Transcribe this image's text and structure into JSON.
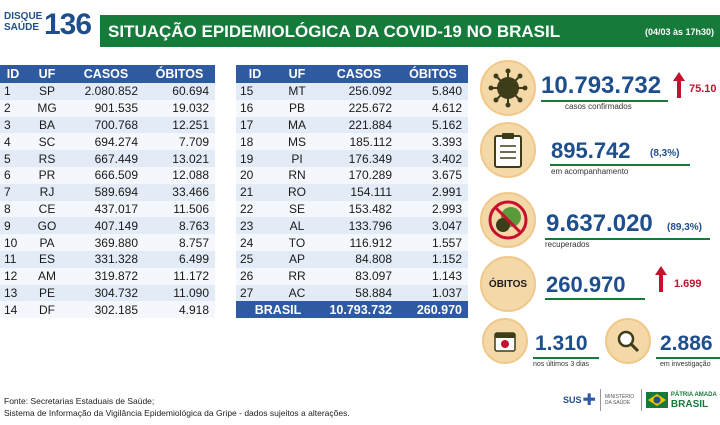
{
  "header": {
    "logo_line1": "DISQUE",
    "logo_line2": "SAÚDE",
    "logo_number": "136",
    "title": "SITUAÇÃO EPIDEMIOLÓGICA DA COVID-19 NO BRASIL",
    "date": "(04/03 às 17h30)"
  },
  "table_headers": {
    "id": "ID",
    "uf": "UF",
    "casos": "CASOS",
    "obitos": "ÓBITOS"
  },
  "table_left": [
    {
      "id": "1",
      "uf": "SP",
      "casos": "2.080.852",
      "obitos": "60.694"
    },
    {
      "id": "2",
      "uf": "MG",
      "casos": "901.535",
      "obitos": "19.032"
    },
    {
      "id": "3",
      "uf": "BA",
      "casos": "700.768",
      "obitos": "12.251"
    },
    {
      "id": "4",
      "uf": "SC",
      "casos": "694.274",
      "obitos": "7.709"
    },
    {
      "id": "5",
      "uf": "RS",
      "casos": "667.449",
      "obitos": "13.021"
    },
    {
      "id": "6",
      "uf": "PR",
      "casos": "666.509",
      "obitos": "12.088"
    },
    {
      "id": "7",
      "uf": "RJ",
      "casos": "589.694",
      "obitos": "33.466"
    },
    {
      "id": "8",
      "uf": "CE",
      "casos": "437.017",
      "obitos": "11.506"
    },
    {
      "id": "9",
      "uf": "GO",
      "casos": "407.149",
      "obitos": "8.763"
    },
    {
      "id": "10",
      "uf": "PA",
      "casos": "369.880",
      "obitos": "8.757"
    },
    {
      "id": "11",
      "uf": "ES",
      "casos": "331.328",
      "obitos": "6.499"
    },
    {
      "id": "12",
      "uf": "AM",
      "casos": "319.872",
      "obitos": "11.172"
    },
    {
      "id": "13",
      "uf": "PE",
      "casos": "304.732",
      "obitos": "11.090"
    },
    {
      "id": "14",
      "uf": "DF",
      "casos": "302.185",
      "obitos": "4.918"
    }
  ],
  "table_right": [
    {
      "id": "15",
      "uf": "MT",
      "casos": "256.092",
      "obitos": "5.840"
    },
    {
      "id": "16",
      "uf": "PB",
      "casos": "225.672",
      "obitos": "4.612"
    },
    {
      "id": "17",
      "uf": "MA",
      "casos": "221.884",
      "obitos": "5.162"
    },
    {
      "id": "18",
      "uf": "MS",
      "casos": "185.112",
      "obitos": "3.393"
    },
    {
      "id": "19",
      "uf": "PI",
      "casos": "176.349",
      "obitos": "3.402"
    },
    {
      "id": "20",
      "uf": "RN",
      "casos": "170.289",
      "obitos": "3.675"
    },
    {
      "id": "21",
      "uf": "RO",
      "casos": "154.111",
      "obitos": "2.991"
    },
    {
      "id": "22",
      "uf": "SE",
      "casos": "153.482",
      "obitos": "2.993"
    },
    {
      "id": "23",
      "uf": "AL",
      "casos": "133.796",
      "obitos": "3.047"
    },
    {
      "id": "24",
      "uf": "TO",
      "casos": "116.912",
      "obitos": "1.557"
    },
    {
      "id": "25",
      "uf": "AP",
      "casos": "84.808",
      "obitos": "1.152"
    },
    {
      "id": "26",
      "uf": "RR",
      "casos": "83.097",
      "obitos": "1.143"
    },
    {
      "id": "27",
      "uf": "AC",
      "casos": "58.884",
      "obitos": "1.037"
    }
  ],
  "total": {
    "label": "BRASIL",
    "casos": "10.793.732",
    "obitos": "260.970"
  },
  "stats": {
    "confirmados": {
      "value": "10.793.732",
      "delta": "75.10",
      "label": "casos confirmados"
    },
    "acompanhamento": {
      "value": "895.742",
      "pct": "(8,3%)",
      "label": "em acompanhamento"
    },
    "recuperados": {
      "value": "9.637.020",
      "pct": "(89,3%)",
      "label": "recuperados"
    },
    "obitos": {
      "icon_label": "ÓBITOS",
      "value": "260.970",
      "delta": "1.699"
    },
    "ultimos3": {
      "value": "1.310",
      "label": "nos últimos 3 dias"
    },
    "investigacao": {
      "value": "2.886",
      "label": "em investigação"
    }
  },
  "footer": {
    "line1": "Fonte: Secretarias Estaduais de Saúde;",
    "line2": "Sistema de Informação da Vigilância Epidemiológica da Gripe - dados sujeitos a alterações."
  },
  "footer_logos": {
    "sus": "SUS",
    "ministry_small": "MINISTÉRIO DA SAÚDE",
    "patria1": "PÁTRIA AMADA",
    "patria2": "BRASIL"
  },
  "colors": {
    "green": "#157a3a",
    "blue": "#1e4f8c",
    "table_header": "#2d5aa0",
    "red": "#c8102e",
    "icon_bg": "#f4d8a8"
  }
}
